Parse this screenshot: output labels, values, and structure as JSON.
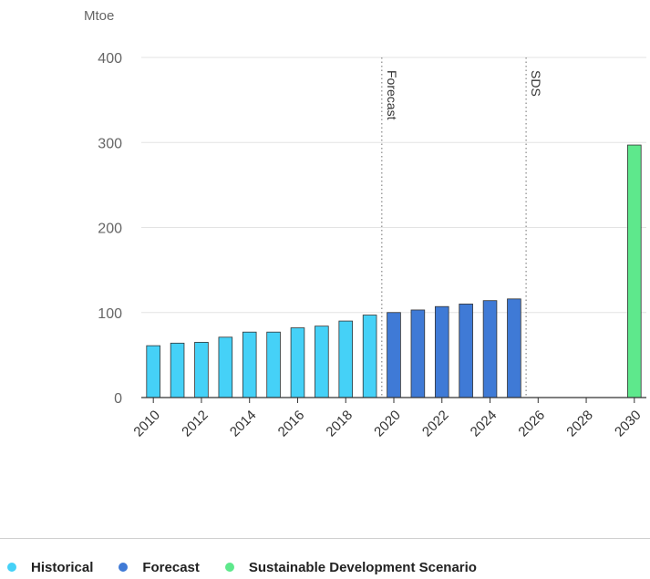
{
  "chart_data": {
    "type": "bar",
    "ylabel": "Mtoe",
    "ylim": [
      0,
      400
    ],
    "yticks": [
      "0",
      "100",
      "200",
      "300",
      "400"
    ],
    "x_tick_labels": [
      "2010",
      "2012",
      "2014",
      "2016",
      "2018",
      "2020",
      "2022",
      "2024",
      "2026",
      "2028",
      "2030"
    ],
    "grid": true,
    "series": [
      {
        "name": "Historical",
        "color": "#45d1f7",
        "points": [
          {
            "x": 2010,
            "y": 61
          },
          {
            "x": 2011,
            "y": 64
          },
          {
            "x": 2012,
            "y": 65
          },
          {
            "x": 2013,
            "y": 71
          },
          {
            "x": 2014,
            "y": 77
          },
          {
            "x": 2015,
            "y": 77
          },
          {
            "x": 2016,
            "y": 82
          },
          {
            "x": 2017,
            "y": 84
          },
          {
            "x": 2018,
            "y": 90
          },
          {
            "x": 2019,
            "y": 97
          }
        ]
      },
      {
        "name": "Forecast",
        "color": "#3f7ad6",
        "points": [
          {
            "x": 2020,
            "y": 100
          },
          {
            "x": 2021,
            "y": 103
          },
          {
            "x": 2022,
            "y": 107
          },
          {
            "x": 2023,
            "y": 110
          },
          {
            "x": 2024,
            "y": 114
          },
          {
            "x": 2025,
            "y": 116
          }
        ]
      },
      {
        "name": "Sustainable Development Scenario",
        "color": "#5ee88c",
        "points": [
          {
            "x": 2030,
            "y": 297
          }
        ]
      }
    ],
    "annotations": [
      {
        "label": "Forecast",
        "x": 2019
      },
      {
        "label": "SDS",
        "x": 2025
      }
    ],
    "legend_position": "bottom-left"
  },
  "legend": {
    "items": [
      {
        "label": "Historical",
        "color": "#45d1f7"
      },
      {
        "label": "Forecast",
        "color": "#3f7ad6"
      },
      {
        "label": "Sustainable Development Scenario",
        "color": "#5ee88c"
      }
    ]
  }
}
